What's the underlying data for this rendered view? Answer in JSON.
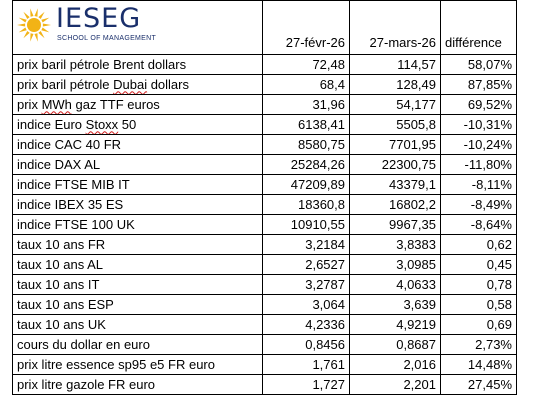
{
  "logo": {
    "name": "IESEG",
    "subtitle": "SCHOOL OF MANAGEMENT",
    "sun_color": "#f2b316",
    "text_color": "#1a2f6b"
  },
  "header": {
    "col_label": "",
    "col_date1": "27-févr-26",
    "col_date2": "27-mars-26",
    "col_diff": "différence"
  },
  "rows": [
    {
      "label": "prix baril pétrole Brent dollars",
      "v1": "72,48",
      "v2": "114,57",
      "diff": "58,07%"
    },
    {
      "label": "prix baril pétrole Dubai dollars",
      "v1": "68,4",
      "v2": "128,49",
      "diff": "87,85%"
    },
    {
      "label": "prix MWh gaz TTF euros",
      "v1": "31,96",
      "v2": "54,177",
      "diff": "69,52%"
    },
    {
      "label": "indice Euro Stoxx 50",
      "v1": "6138,41",
      "v2": "5505,8",
      "diff": "-10,31%"
    },
    {
      "label": "indice CAC 40 FR",
      "v1": "8580,75",
      "v2": "7701,95",
      "diff": "-10,24%"
    },
    {
      "label": "indice DAX AL",
      "v1": "25284,26",
      "v2": "22300,75",
      "diff": "-11,80%"
    },
    {
      "label": "indice FTSE MIB IT",
      "v1": "47209,89",
      "v2": "43379,1",
      "diff": "-8,11%"
    },
    {
      "label": "indice IBEX 35 ES",
      "v1": "18360,8",
      "v2": "16802,2",
      "diff": "-8,49%"
    },
    {
      "label": "indice FTSE 100 UK",
      "v1": "10910,55",
      "v2": "9967,35",
      "diff": "-8,64%"
    },
    {
      "label": "taux 10 ans FR",
      "v1": "3,2184",
      "v2": "3,8383",
      "diff": "0,62"
    },
    {
      "label": "taux 10 ans AL",
      "v1": "2,6527",
      "v2": "3,0985",
      "diff": "0,45"
    },
    {
      "label": "taux 10 ans IT",
      "v1": "3,2787",
      "v2": "4,0633",
      "diff": "0,78"
    },
    {
      "label": "taux 10 ans ESP",
      "v1": "3,064",
      "v2": "3,639",
      "diff": "0,58"
    },
    {
      "label": "taux 10 ans UK",
      "v1": "4,2336",
      "v2": "4,9219",
      "diff": "0,69"
    },
    {
      "label": "cours du dollar en euro",
      "v1": "0,8456",
      "v2": "0,8687",
      "diff": "2,73%"
    },
    {
      "label": "prix litre essence sp95 e5 FR euro",
      "v1": "1,761",
      "v2": "2,016",
      "diff": "14,48%"
    },
    {
      "label": "prix litre gazole FR euro",
      "v1": "1,727",
      "v2": "2,201",
      "diff": "27,45%"
    }
  ]
}
